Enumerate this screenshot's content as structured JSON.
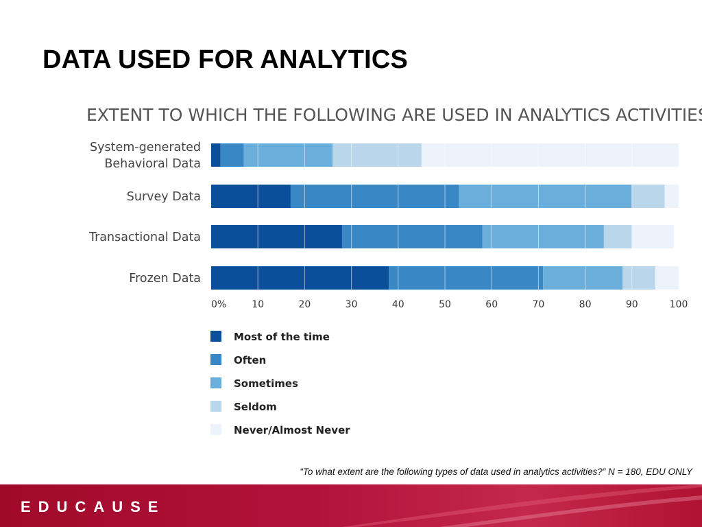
{
  "slide": {
    "title": "DATA USED FOR ANALYTICS",
    "footnote": "“To what extent are the following types of data used in analytics activities?” N = 180, EDU ONLY",
    "logo": "EDUCAUSE"
  },
  "chart_data": {
    "type": "bar",
    "orientation": "horizontal",
    "stacked": true,
    "title": "EXTENT TO WHICH THE FOLLOWING ARE USED IN ANALYTICS ACTIVITIES",
    "categories": [
      "System-generated\nBehavioral Data",
      "Survey Data",
      "Transactional Data",
      "Frozen Data"
    ],
    "series": [
      {
        "name": "Most of the time",
        "color": "#0b4f9a",
        "values": [
          2,
          17,
          28,
          38
        ]
      },
      {
        "name": "Often",
        "color": "#3a87c5",
        "values": [
          5,
          36,
          30,
          33
        ]
      },
      {
        "name": "Sometimes",
        "color": "#6aaedc",
        "values": [
          19,
          37,
          26,
          17
        ]
      },
      {
        "name": "Seldom",
        "color": "#b9d6ea",
        "values": [
          19,
          7,
          6,
          7
        ]
      },
      {
        "name": "Never/Almost Never",
        "color": "#edf3fb",
        "values": [
          55,
          3,
          9,
          5
        ]
      }
    ],
    "xlim": [
      0,
      100
    ],
    "xticks": [
      "0%",
      "10",
      "20",
      "30",
      "40",
      "50",
      "60",
      "70",
      "80",
      "90",
      "100"
    ],
    "grid": true,
    "legend_position": "bottom-left"
  }
}
